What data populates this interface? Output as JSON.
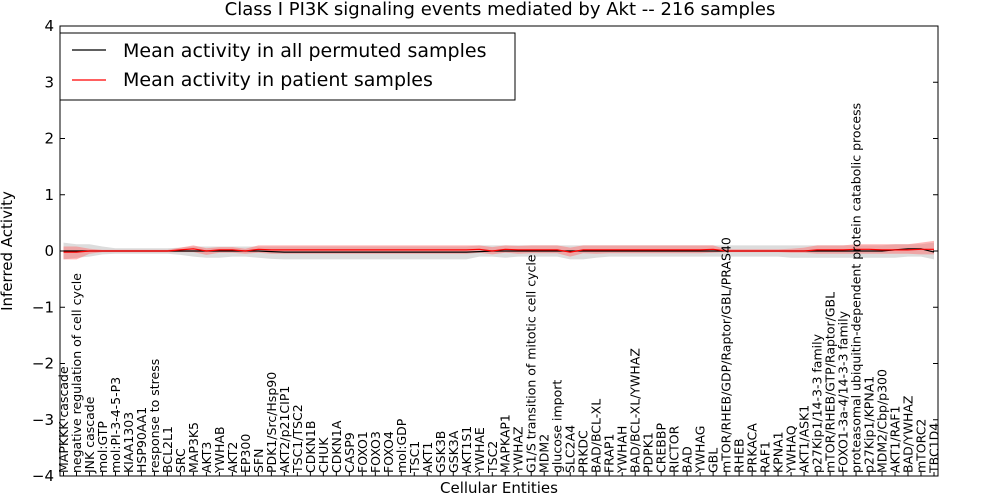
{
  "chart_data": {
    "type": "line",
    "title": "Class I PI3K signaling events mediated by Akt -- 216 samples",
    "xlabel": "Cellular Entities",
    "ylabel": "Inferred Activity",
    "ylim": [
      -4,
      4
    ],
    "yticks": [
      "−4",
      "−3",
      "−2",
      "−1",
      "0",
      "1",
      "2",
      "3",
      "4"
    ],
    "legend_position": "top-left",
    "grid": false,
    "categories": [
      "MAPKKK cascade",
      "negative regulation of cell cycle",
      "JNK cascade",
      "mol:GTP",
      "mol:PI-3-4-5-P3",
      "KIAA1303",
      "HSP90AA1",
      "response to stress",
      "BCL2L1",
      "SRC",
      "MAP3K5",
      "AKT3",
      "YWHAB",
      "AKT2",
      "EP300",
      "SFN",
      "PDK1/Src/Hsp90",
      "AKT2/p21CIP1",
      "TSC1/TSC2",
      "CDKN1B",
      "CHUK",
      "CDKN1A",
      "CASP9",
      "FOXO1",
      "FOXO3",
      "FOXO4",
      "mol:GDP",
      "TSC1",
      "AKT1",
      "GSK3B",
      "GSK3A",
      "AKT1S1",
      "YWHAE",
      "TSC2",
      "MAPKAP1",
      "YWHAZ",
      "G1/S transition of mitotic cell cycle",
      "MDM2",
      "glucose import",
      "SLC2A4",
      "PRKDC",
      "BAD/BCL-XL",
      "FRAP1",
      "YWHAH",
      "BAD/BCL-XL/YWHAZ",
      "PDPK1",
      "CREBBP",
      "RICTOR",
      "BAD",
      "YWHAG",
      "GBL",
      "mTOR/RHEB/GDP/Raptor/GBL/PRAS40",
      "RHEB",
      "PRKACA",
      "RAF1",
      "KPNA1",
      "YWHAQ",
      "AKT1/ASK1",
      "p27Kip1/14-3-3 family",
      "mTOR/RHEB/GTP/Raptor/GBL",
      "FOXO1-3a-4/14-3-3 family",
      "proteasomal ubiquitin-dependent protein catabolic process",
      "p27Kip1/KPNA1",
      "MDM2/Cbp/p300",
      "AKT1/RAF1",
      "BAD/YWHAZ",
      "mTORC2",
      "TBC1D4"
    ],
    "series": [
      {
        "name": "Mean activity in all permuted samples",
        "color": "#000000",
        "values": [
          0.0,
          0.0,
          0.0,
          0.0,
          0.0,
          0.0,
          0.0,
          0.0,
          0.0,
          0.0,
          0.0,
          0.0,
          0.0,
          0.0,
          0.0,
          0.0,
          -0.01,
          -0.02,
          -0.02,
          -0.02,
          -0.02,
          -0.02,
          -0.02,
          -0.02,
          -0.02,
          -0.02,
          -0.02,
          -0.02,
          -0.02,
          -0.02,
          -0.02,
          -0.02,
          -0.01,
          0.0,
          0.0,
          0.0,
          0.0,
          0.0,
          0.0,
          0.0,
          0.0,
          0.0,
          0.0,
          0.0,
          0.0,
          0.0,
          0.0,
          0.0,
          0.0,
          0.0,
          0.0,
          0.0,
          0.0,
          0.0,
          0.0,
          0.0,
          0.0,
          0.0,
          0.0,
          0.0,
          0.0,
          0.0,
          0.0,
          0.0,
          0.02,
          0.04,
          0.04,
          -0.02
        ],
        "band_lower": [
          -0.15,
          -0.12,
          -0.1,
          -0.06,
          -0.05,
          -0.05,
          -0.05,
          -0.05,
          -0.05,
          -0.07,
          -0.1,
          -0.12,
          -0.12,
          -0.1,
          -0.1,
          -0.12,
          -0.14,
          -0.15,
          -0.15,
          -0.15,
          -0.15,
          -0.15,
          -0.15,
          -0.15,
          -0.15,
          -0.15,
          -0.15,
          -0.15,
          -0.15,
          -0.15,
          -0.15,
          -0.15,
          -0.1,
          -0.1,
          -0.12,
          -0.1,
          -0.1,
          -0.1,
          -0.1,
          -0.15,
          -0.15,
          -0.12,
          -0.1,
          -0.1,
          -0.1,
          -0.1,
          -0.1,
          -0.1,
          -0.1,
          -0.1,
          -0.1,
          -0.1,
          -0.1,
          -0.1,
          -0.1,
          -0.1,
          -0.12,
          -0.12,
          -0.12,
          -0.12,
          -0.12,
          -0.12,
          -0.12,
          -0.12,
          -0.12,
          -0.1,
          -0.1,
          -0.15
        ],
        "band_upper": [
          0.15,
          0.12,
          0.12,
          0.08,
          0.05,
          0.05,
          0.05,
          0.05,
          0.05,
          0.06,
          0.08,
          0.08,
          0.08,
          0.08,
          0.08,
          0.08,
          0.08,
          0.08,
          0.08,
          0.08,
          0.08,
          0.08,
          0.08,
          0.08,
          0.08,
          0.08,
          0.08,
          0.08,
          0.08,
          0.08,
          0.08,
          0.08,
          0.1,
          0.1,
          0.1,
          0.1,
          0.1,
          0.1,
          0.1,
          0.1,
          0.1,
          0.1,
          0.1,
          0.1,
          0.1,
          0.1,
          0.1,
          0.1,
          0.1,
          0.1,
          0.1,
          0.1,
          0.1,
          0.1,
          0.1,
          0.1,
          0.1,
          0.1,
          0.1,
          0.1,
          0.1,
          0.1,
          0.1,
          0.1,
          0.12,
          0.12,
          0.12,
          0.15
        ]
      },
      {
        "name": "Mean activity in patient samples",
        "color": "#ff0000",
        "values": [
          -0.02,
          -0.02,
          0.0,
          0.0,
          0.0,
          0.0,
          0.0,
          0.0,
          0.0,
          0.02,
          0.04,
          0.0,
          0.02,
          0.02,
          0.0,
          0.03,
          0.02,
          0.02,
          0.02,
          0.02,
          0.02,
          0.02,
          0.02,
          0.02,
          0.02,
          0.02,
          0.02,
          0.02,
          0.02,
          0.02,
          0.02,
          0.02,
          0.03,
          0.0,
          0.03,
          0.02,
          0.02,
          0.02,
          0.02,
          -0.02,
          0.02,
          0.02,
          0.02,
          0.02,
          0.02,
          0.02,
          0.02,
          0.02,
          0.02,
          0.02,
          0.03,
          0.0,
          0.0,
          0.0,
          0.0,
          0.0,
          0.0,
          0.0,
          0.02,
          0.02,
          0.02,
          0.03,
          0.03,
          0.02,
          0.02,
          0.02,
          0.03,
          0.03
        ],
        "band_lower": [
          -0.15,
          -0.15,
          -0.05,
          -0.02,
          -0.02,
          -0.02,
          -0.02,
          -0.02,
          -0.02,
          -0.02,
          -0.02,
          -0.07,
          -0.03,
          -0.03,
          -0.05,
          -0.03,
          -0.05,
          -0.05,
          -0.05,
          -0.05,
          -0.05,
          -0.05,
          -0.05,
          -0.05,
          -0.05,
          -0.05,
          -0.05,
          -0.05,
          -0.05,
          -0.05,
          -0.05,
          -0.05,
          -0.03,
          -0.06,
          -0.03,
          -0.05,
          -0.04,
          -0.04,
          -0.04,
          -0.1,
          -0.04,
          -0.05,
          -0.04,
          -0.04,
          -0.04,
          -0.04,
          -0.04,
          -0.04,
          -0.04,
          -0.04,
          -0.03,
          -0.02,
          -0.02,
          -0.02,
          -0.02,
          -0.02,
          -0.03,
          -0.03,
          -0.05,
          -0.05,
          -0.05,
          -0.05,
          -0.05,
          -0.05,
          -0.05,
          -0.05,
          -0.06,
          -0.06
        ],
        "band_upper": [
          0.08,
          0.08,
          0.04,
          0.02,
          0.02,
          0.02,
          0.02,
          0.02,
          0.02,
          0.06,
          0.1,
          0.05,
          0.07,
          0.07,
          0.04,
          0.1,
          0.1,
          0.1,
          0.1,
          0.1,
          0.1,
          0.1,
          0.1,
          0.1,
          0.1,
          0.1,
          0.1,
          0.1,
          0.1,
          0.1,
          0.1,
          0.1,
          0.1,
          0.07,
          0.1,
          0.09,
          0.1,
          0.1,
          0.1,
          0.06,
          0.1,
          0.1,
          0.1,
          0.1,
          0.1,
          0.1,
          0.1,
          0.1,
          0.1,
          0.1,
          0.1,
          0.03,
          0.03,
          0.03,
          0.03,
          0.03,
          0.04,
          0.06,
          0.1,
          0.1,
          0.1,
          0.12,
          0.12,
          0.12,
          0.12,
          0.12,
          0.15,
          0.18
        ]
      }
    ]
  }
}
